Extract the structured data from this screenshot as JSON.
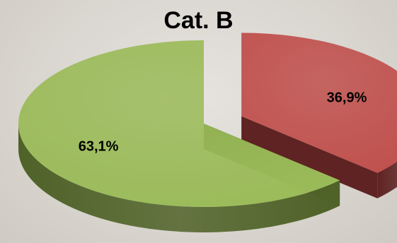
{
  "chart_data": {
    "type": "pie",
    "title": "Cat. B",
    "slices": [
      {
        "value": 36.9,
        "label": "36,9%",
        "color": "#c0504d",
        "side_color": "#5e2322",
        "exploded": true
      },
      {
        "value": 63.1,
        "label": "63,1%",
        "color": "#9bbb59",
        "side_color": "#4f6228",
        "exploded": false
      }
    ],
    "three_d": true,
    "legend": "none"
  }
}
